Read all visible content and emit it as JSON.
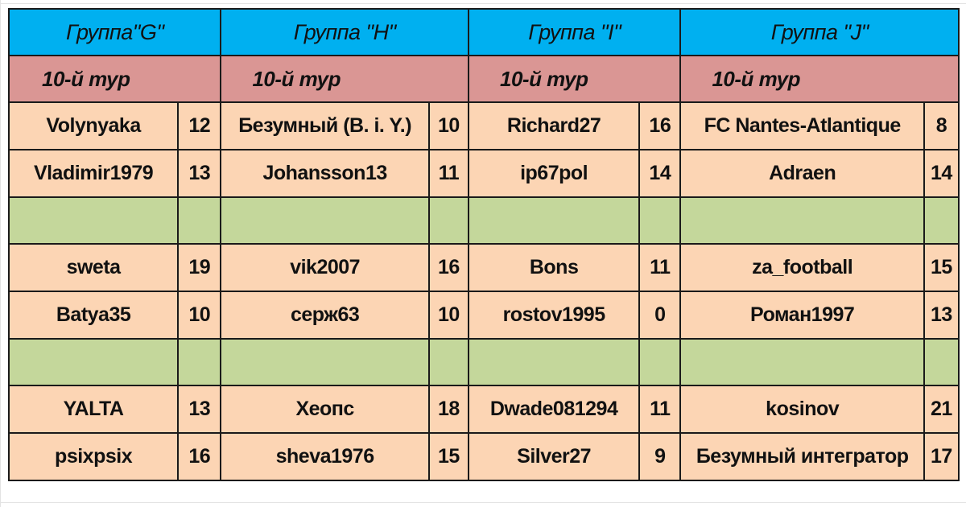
{
  "groups": [
    {
      "title": "Группа\"G\"",
      "round": "10-й тур",
      "rows": [
        {
          "name": "Volynyaka",
          "score": "12"
        },
        {
          "name": "Vladimir1979",
          "score": "13"
        },
        {
          "name": "",
          "score": ""
        },
        {
          "name": "sweta",
          "score": "19"
        },
        {
          "name": "Batya35",
          "score": "10"
        },
        {
          "name": "",
          "score": ""
        },
        {
          "name": "YALTA",
          "score": "13"
        },
        {
          "name": "psixpsix",
          "score": "16"
        }
      ]
    },
    {
      "title": "Группа \"H\"",
      "round": "10-й тур",
      "rows": [
        {
          "name": "Безумный (B. i. Y.)",
          "score": "10"
        },
        {
          "name": "Johansson13",
          "score": "11"
        },
        {
          "name": "",
          "score": ""
        },
        {
          "name": "vik2007",
          "score": "16"
        },
        {
          "name": "серж63",
          "score": "10"
        },
        {
          "name": "",
          "score": ""
        },
        {
          "name": "Хеопс",
          "score": "18"
        },
        {
          "name": "sheva1976",
          "score": "15"
        }
      ]
    },
    {
      "title": "Группа \"I\"",
      "round": "10-й тур",
      "rows": [
        {
          "name": "Richard27",
          "score": "16"
        },
        {
          "name": "ip67pol",
          "score": "14"
        },
        {
          "name": "",
          "score": ""
        },
        {
          "name": "Bons",
          "score": "11"
        },
        {
          "name": "rostov1995",
          "score": "0"
        },
        {
          "name": "",
          "score": ""
        },
        {
          "name": "Dwade081294",
          "score": "11"
        },
        {
          "name": "Silver27",
          "score": "9"
        }
      ]
    },
    {
      "title": "Группа \"J\"",
      "round": "10-й тур",
      "rows": [
        {
          "name": "FC Nantes-Atlantique",
          "score": "8"
        },
        {
          "name": "Adraen",
          "score": "14"
        },
        {
          "name": "",
          "score": ""
        },
        {
          "name": "za_football",
          "score": "15"
        },
        {
          "name": "Роман1997",
          "score": "13"
        },
        {
          "name": "",
          "score": ""
        },
        {
          "name": "kosinov",
          "score": "21"
        },
        {
          "name": "Безумный интегратор",
          "score": "17"
        }
      ]
    }
  ],
  "colors": {
    "header": "#00b0f0",
    "round": "#da9694",
    "data_row": "#fcd5b4",
    "separator_row": "#c4d79b"
  }
}
